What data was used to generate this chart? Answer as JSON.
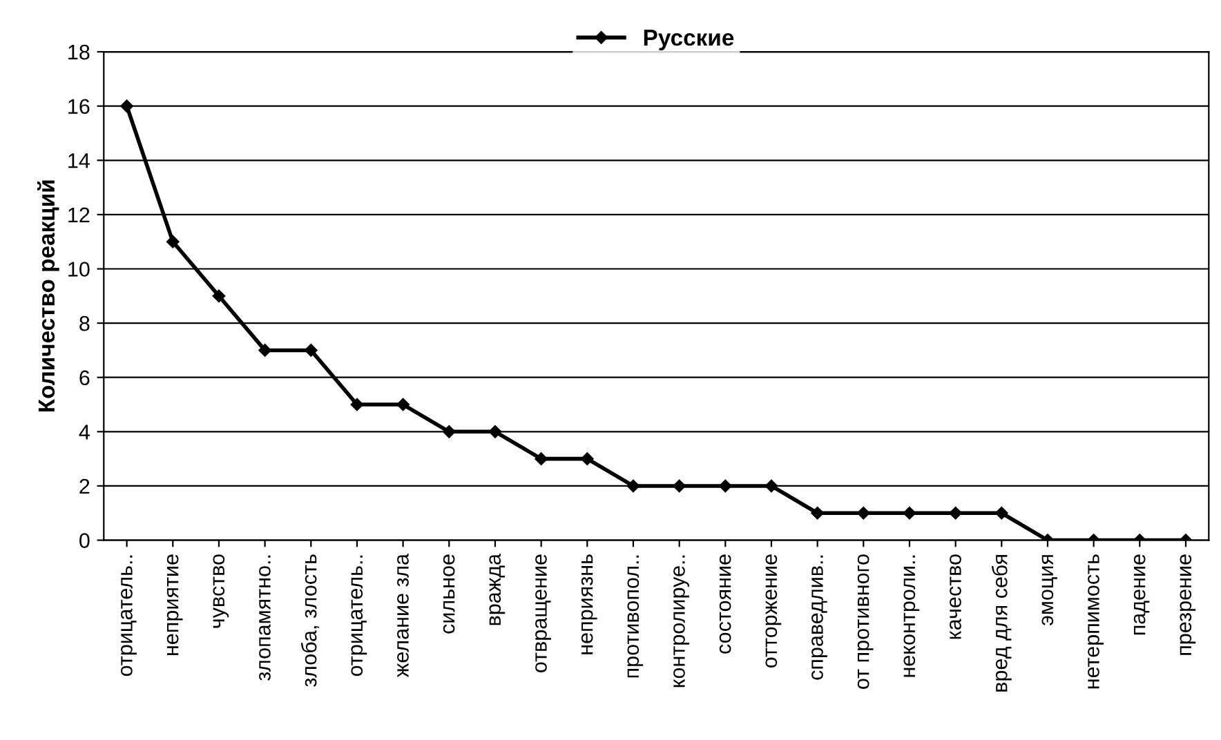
{
  "chart_data": {
    "type": "line",
    "ylabel": "Количество реакций",
    "categories": [
      "отрицатель..",
      "неприятие",
      "чувство",
      "злопамятно..",
      "злоба, злость",
      "отрицатель..",
      "желание зла",
      "сильное",
      "вражда",
      "отвращение",
      "неприязнь",
      "противопол..",
      "контролируе..",
      "состояние",
      "отторжение",
      "справедлив..",
      "от противного",
      "неконтроли..",
      "качество",
      "вред для себя",
      "эмоция",
      "нетерпимость",
      "падение",
      "презрение"
    ],
    "series": [
      {
        "name": "Русские",
        "color": "#000000",
        "values": [
          16,
          11,
          9,
          7,
          7,
          5,
          5,
          4,
          4,
          3,
          3,
          2,
          2,
          2,
          2,
          1,
          1,
          1,
          1,
          1,
          0,
          0,
          0,
          0
        ]
      }
    ],
    "ylim": [
      0,
      18
    ],
    "yticks": [
      0,
      2,
      4,
      6,
      8,
      10,
      12,
      14,
      16,
      18
    ],
    "grid": "y",
    "legend": "top",
    "marker": "diamond",
    "line_style": "solid"
  }
}
